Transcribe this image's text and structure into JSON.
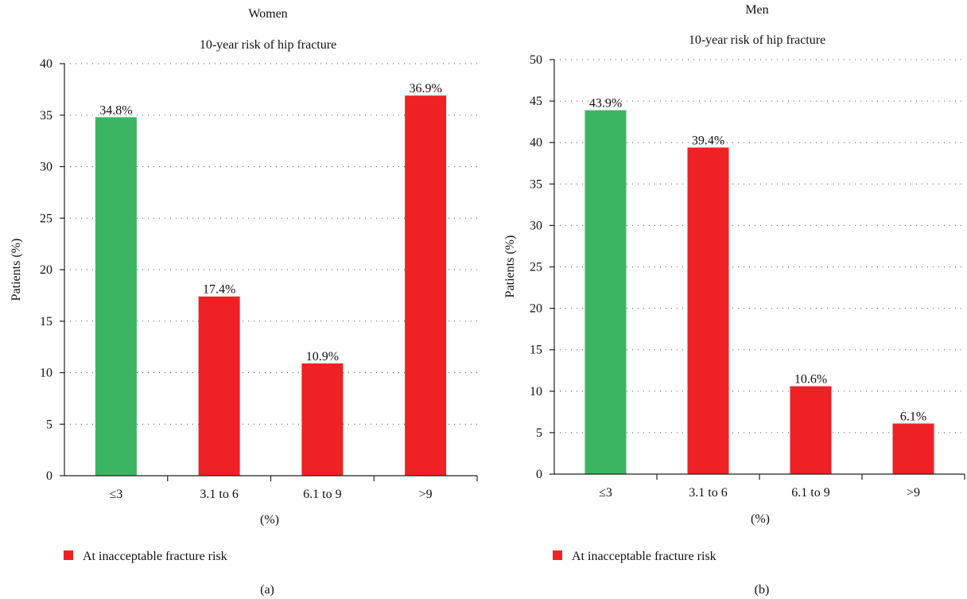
{
  "chart_data": [
    {
      "type": "bar",
      "title": "Women",
      "subtitle": "10-year risk of hip fracture",
      "xlabel": "(%)",
      "ylabel": "Patients (%)",
      "categories": [
        "≤3",
        "3.1 to 6",
        "6.1 to 9",
        ">9"
      ],
      "values": [
        34.8,
        17.4,
        10.9,
        36.9
      ],
      "data_labels": [
        "34.8%",
        "17.4%",
        "10.9%",
        "36.9%"
      ],
      "bar_colors": [
        "#3bb562",
        "#ee2224",
        "#ee2224",
        "#ee2224"
      ],
      "ylim": [
        0,
        40
      ],
      "yticks": [
        0,
        5,
        10,
        15,
        20,
        25,
        30,
        35,
        40
      ],
      "grid": "horizontal dotted",
      "legend": {
        "label": "At inacceptable fracture risk",
        "color": "#ee2224",
        "placement": "bottom-left"
      },
      "panel_label": "(a)"
    },
    {
      "type": "bar",
      "title": "Men",
      "subtitle": "10-year risk of hip fracture",
      "xlabel": "(%)",
      "ylabel": "Patients (%)",
      "categories": [
        "≤3",
        "3.1 to 6",
        "6.1 to 9",
        ">9"
      ],
      "values": [
        43.9,
        39.4,
        10.6,
        6.1
      ],
      "data_labels": [
        "43.9%",
        "39.4%",
        "10.6%",
        "6.1%"
      ],
      "bar_colors": [
        "#3bb562",
        "#ee2224",
        "#ee2224",
        "#ee2224"
      ],
      "ylim": [
        0,
        50
      ],
      "yticks": [
        0,
        5,
        10,
        15,
        20,
        25,
        30,
        35,
        40,
        45,
        50
      ],
      "grid": "horizontal dotted",
      "legend": {
        "label": "At inacceptable fracture risk",
        "color": "#ee2224",
        "placement": "bottom-left"
      },
      "panel_label": "(b)"
    }
  ]
}
